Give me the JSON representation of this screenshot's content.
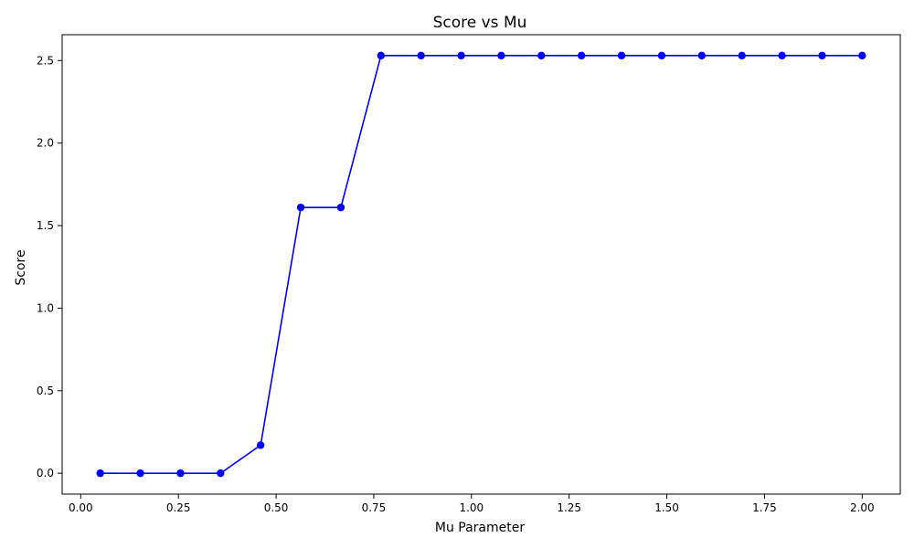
{
  "chart_data": {
    "type": "line",
    "title": "Score vs Mu",
    "xlabel": "Mu Parameter",
    "ylabel": "Score",
    "xlim": [
      -0.0475,
      2.0975
    ],
    "ylim": [
      -0.1265,
      2.6565
    ],
    "grid": false,
    "x_ticks": [
      "0.00",
      "0.25",
      "0.50",
      "0.75",
      "1.00",
      "1.25",
      "1.50",
      "1.75",
      "2.00"
    ],
    "y_ticks": [
      "0.0",
      "0.5",
      "1.0",
      "1.5",
      "2.0",
      "2.5"
    ],
    "color": "#0000ff",
    "marker": "circle",
    "series": [
      {
        "x": [
          0.05,
          0.1526,
          0.2553,
          0.3579,
          0.4605,
          0.5632,
          0.6658,
          0.7684,
          0.8711,
          0.9737,
          1.0763,
          1.1789,
          1.2816,
          1.3842,
          1.4868,
          1.5895,
          1.6921,
          1.7947,
          1.8974,
          2.0
        ],
        "values": [
          0.0,
          0.0,
          0.0,
          0.0,
          0.17,
          1.61,
          1.61,
          2.53,
          2.53,
          2.53,
          2.53,
          2.53,
          2.53,
          2.53,
          2.53,
          2.53,
          2.53,
          2.53,
          2.53,
          2.53
        ]
      }
    ]
  }
}
